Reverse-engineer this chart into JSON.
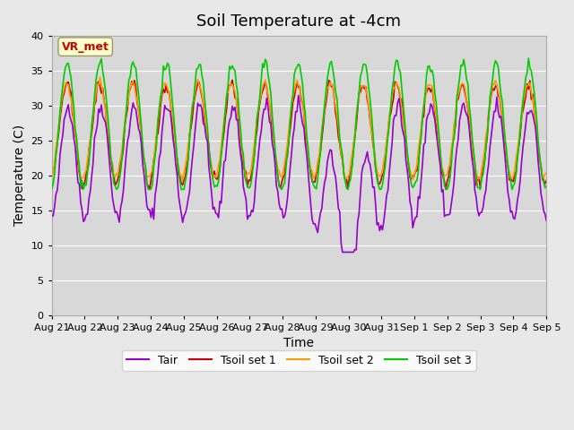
{
  "title": "Soil Temperature at -4cm",
  "xlabel": "Time",
  "ylabel": "Temperature (C)",
  "ylim": [
    0,
    40
  ],
  "yticks": [
    0,
    5,
    10,
    15,
    20,
    25,
    30,
    35,
    40
  ],
  "x_labels": [
    "Aug 21",
    "Aug 22",
    "Aug 23",
    "Aug 24",
    "Aug 25",
    "Aug 26",
    "Aug 27",
    "Aug 28",
    "Aug 29",
    "Aug 30",
    "Aug 31",
    "Sep 1",
    "Sep 2",
    "Sep 3",
    "Sep 4",
    "Sep 5"
  ],
  "colors": {
    "Tair": "#9900cc",
    "Tsoil1": "#cc0000",
    "Tsoil2": "#ff9900",
    "Tsoil3": "#00cc00"
  },
  "annotation_text": "VR_met",
  "annotation_color": "#cc0000",
  "annotation_bg": "#ffffcc",
  "background_color": "#e8e8e8",
  "plot_bg": "#d8d8d8",
  "grid_color": "#ffffff",
  "title_fontsize": 13,
  "label_fontsize": 10
}
